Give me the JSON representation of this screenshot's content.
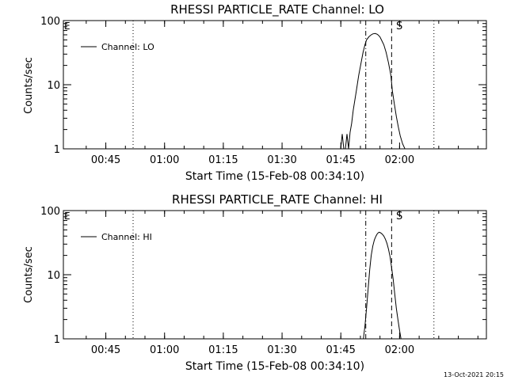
{
  "chart_data": [
    {
      "type": "line",
      "title": "RHESSI PARTICLE_RATE Channel: LO",
      "xlabel": "Start Time (15-Feb-08 00:34:10)",
      "ylabel": "Counts/sec",
      "yscale": "log",
      "ylim": [
        1,
        100
      ],
      "xlim_min": [
        0,
        108
      ],
      "x_ticks": [
        "00:45",
        "01:00",
        "01:15",
        "01:30",
        "01:45",
        "02:00"
      ],
      "y_ticks": [
        "1",
        "10",
        "100"
      ],
      "grid": false,
      "legend_position": "top-left",
      "corner_labels": {
        "left": "E",
        "flare_marker": "S"
      },
      "series": [
        {
          "name": "Channel: LO",
          "x_min": [
            70.8,
            71.2,
            71.6,
            72.0,
            72.4,
            72.8,
            73.2,
            73.6,
            74.0,
            74.8,
            75.4,
            76.0,
            76.5,
            77.0,
            77.4,
            78.0,
            78.6,
            79.0,
            79.6,
            80.2,
            80.8,
            81.2,
            81.8,
            82.4,
            83.0,
            83.6,
            84.0,
            84.5,
            85.0,
            85.5,
            86.0,
            86.6,
            87.2,
            87.7
          ],
          "y": [
            1,
            1.7,
            1,
            1,
            1.7,
            1,
            1.8,
            2.5,
            4,
            8,
            14,
            22,
            32,
            42,
            50,
            56,
            60,
            62,
            63,
            61,
            56,
            50,
            42,
            32,
            22,
            14,
            8,
            5,
            3.2,
            2.2,
            1.6,
            1.2,
            1.0,
            0.8
          ]
        }
      ],
      "vertical_lines": [
        {
          "x_min": 17.8,
          "style": "dotted"
        },
        {
          "x_min": 77.2,
          "style": "dash-dot"
        },
        {
          "x_min": 83.8,
          "style": "dashed"
        },
        {
          "x_min": 94.6,
          "style": "dotted"
        }
      ]
    },
    {
      "type": "line",
      "title": "RHESSI PARTICLE_RATE Channel: HI",
      "xlabel": "Start Time (15-Feb-08 00:34:10)",
      "ylabel": "Counts/sec",
      "yscale": "log",
      "ylim": [
        1,
        100
      ],
      "xlim_min": [
        0,
        108
      ],
      "x_ticks": [
        "00:45",
        "01:00",
        "01:15",
        "01:30",
        "01:45",
        "02:00"
      ],
      "y_ticks": [
        "1",
        "10",
        "100"
      ],
      "grid": false,
      "legend_position": "top-left",
      "corner_labels": {
        "left": "E",
        "flare_marker": "S"
      },
      "series": [
        {
          "name": "Channel: HI",
          "x_min": [
            76.6,
            77.0,
            77.4,
            77.8,
            78.2,
            78.6,
            79.0,
            79.4,
            79.8,
            80.2,
            80.6,
            81.0,
            81.4,
            81.8,
            82.2,
            82.6,
            83.0,
            83.4,
            83.8,
            84.2,
            84.6,
            85.0,
            85.4,
            85.8,
            86.2,
            86.6
          ],
          "y": [
            1,
            1.6,
            3,
            6,
            12,
            20,
            28,
            35,
            40,
            44,
            46,
            45,
            43,
            40,
            36,
            31,
            25,
            19,
            13,
            8.5,
            5,
            3,
            2,
            1.4,
            1.0,
            0.8
          ]
        }
      ],
      "vertical_lines": [
        {
          "x_min": 17.8,
          "style": "dotted"
        },
        {
          "x_min": 77.2,
          "style": "dash-dot"
        },
        {
          "x_min": 83.8,
          "style": "dashed"
        },
        {
          "x_min": 94.6,
          "style": "dotted"
        }
      ]
    }
  ],
  "footer": {
    "timestamp": "13-Oct-2021 20:15"
  }
}
